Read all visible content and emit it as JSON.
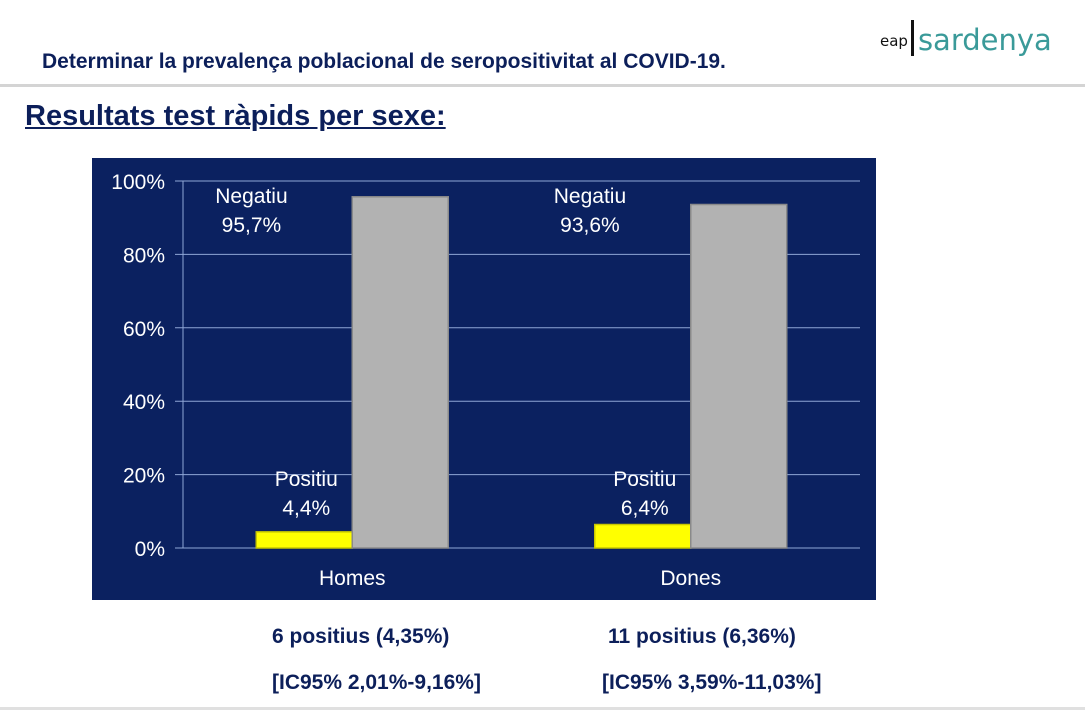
{
  "header": {
    "title": "Determinar la prevalença poblacional de seropositivitat al COVID-19.",
    "logo": {
      "prefix": "eap",
      "name": "sardenya"
    }
  },
  "subtitle": "Resultats test ràpids per sexe:",
  "colors": {
    "background": "#0b2160",
    "positive": "#ffff00",
    "negative": "#b2b2b2",
    "grid": "#8fa6d6"
  },
  "chart_data": {
    "type": "bar",
    "categories": [
      "Homes",
      "Dones"
    ],
    "series": [
      {
        "name": "Positiu",
        "values": [
          4.4,
          6.4
        ],
        "labels": [
          "4,4%",
          "6,4%"
        ]
      },
      {
        "name": "Negatiu",
        "values": [
          95.7,
          93.6
        ],
        "labels": [
          "95,7%",
          "93,6%"
        ]
      }
    ],
    "yticks": [
      "0%",
      "20%",
      "40%",
      "60%",
      "80%",
      "100%"
    ],
    "ylim": [
      0,
      100
    ],
    "grid": true
  },
  "notes": [
    {
      "count": "6 positius (4,35%)",
      "ci": "[IC95% 2,01%-9,16%]"
    },
    {
      "count": "11 positius (6,36%)",
      "ci": "[IC95% 3,59%-11,03%]"
    }
  ]
}
